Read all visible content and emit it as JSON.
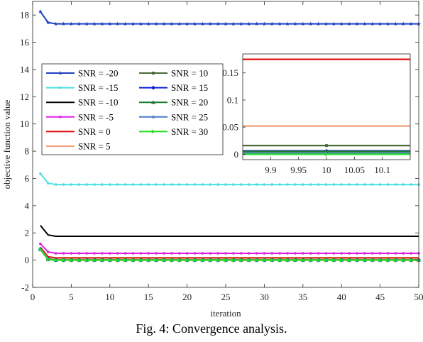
{
  "caption": "Fig. 4: Convergence analysis.",
  "chart_data": [
    {
      "id": "main",
      "type": "line",
      "xlabel": "iteration",
      "ylabel": "objective function value",
      "xlim": [
        0,
        50
      ],
      "ylim": [
        -2,
        19
      ],
      "xticks": [
        0,
        5,
        10,
        15,
        20,
        25,
        30,
        35,
        40,
        45,
        50
      ],
      "yticks": [
        -2,
        0,
        2,
        4,
        6,
        8,
        10,
        12,
        14,
        16,
        18
      ],
      "legend_position": "upper-left",
      "legend_columns": 2,
      "series": [
        {
          "name": "SNR = -20",
          "color": "#1f3fbf",
          "marker": "star",
          "values": [
            18.25,
            17.45,
            17.35
          ]
        },
        {
          "name": "SNR = -15",
          "color": "#4fe0e0",
          "marker": "dot",
          "values": [
            6.35,
            5.65,
            5.55
          ]
        },
        {
          "name": "SNR = -10",
          "color": "#000000",
          "marker": "none",
          "values": [
            2.55,
            1.85,
            1.75
          ]
        },
        {
          "name": "SNR = -5",
          "color": "#e020e0",
          "marker": "dot",
          "values": [
            1.2,
            0.6,
            0.5
          ]
        },
        {
          "name": "SNR = 0",
          "color": "#e01010",
          "marker": "none",
          "values": [
            0.95,
            0.25,
            0.17
          ]
        },
        {
          "name": "SNR = 5",
          "color": "#f2a07a",
          "marker": "none",
          "values": [
            0.85,
            0.12,
            0.05
          ]
        },
        {
          "name": "SNR = 10",
          "color": "#4a6a3a",
          "marker": "square",
          "values": [
            0.82,
            0.08,
            0.02
          ]
        },
        {
          "name": "SNR = 15",
          "color": "#0a1ed8",
          "marker": "diamond",
          "values": [
            0.8,
            0.06,
            0.005
          ]
        },
        {
          "name": "SNR = 20",
          "color": "#1a7a2a",
          "marker": "triangle",
          "values": [
            0.79,
            0.05,
            0.003
          ]
        },
        {
          "name": "SNR = 25",
          "color": "#4a7ac8",
          "marker": "star",
          "values": [
            0.78,
            0.05,
            0.002
          ]
        },
        {
          "name": "SNR = 30",
          "color": "#22e022",
          "marker": "triangle-right",
          "values": [
            0.78,
            0.05,
            0.0
          ]
        }
      ]
    },
    {
      "id": "inset",
      "type": "line",
      "xlim": [
        9.85,
        10.15
      ],
      "ylim": [
        -0.01,
        0.185
      ],
      "xticks": [
        9.9,
        9.95,
        10,
        10.05,
        10.1
      ],
      "xtick_labels": [
        "9.9",
        "9.95",
        "10",
        "10.05",
        "10.1"
      ],
      "yticks": [
        0,
        0.05,
        0.1,
        0.15
      ],
      "ytick_labels": [
        "0",
        "0.05",
        "0.1",
        "0.15"
      ],
      "series_values": [
        0.175,
        0.052,
        0.016,
        0.006,
        0.005,
        0.002,
        0.0
      ]
    }
  ]
}
